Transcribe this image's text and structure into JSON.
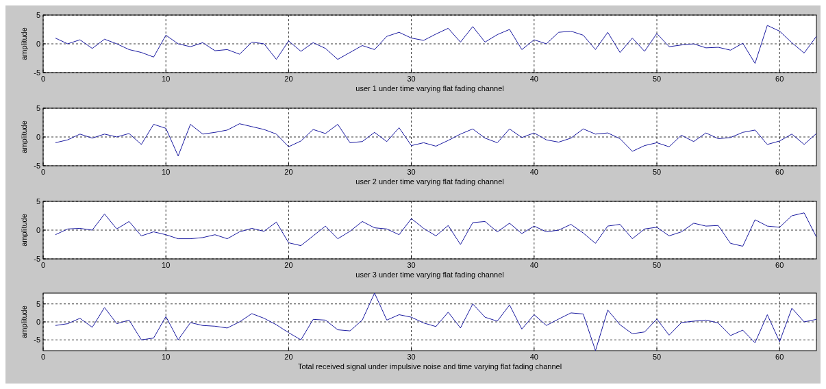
{
  "chart_data": [
    {
      "type": "line",
      "xlabel": "user 1 under time varying flat fading channel",
      "ylabel": "amplitude",
      "x": [
        1,
        2,
        3,
        4,
        5,
        6,
        7,
        8,
        9,
        10,
        11,
        12,
        13,
        14,
        15,
        16,
        17,
        18,
        19,
        20,
        21,
        22,
        23,
        24,
        25,
        26,
        27,
        28,
        29,
        30,
        31,
        32,
        33,
        34,
        35,
        36,
        37,
        38,
        39,
        40,
        41,
        42,
        43,
        44,
        45,
        46,
        47,
        48,
        49,
        50,
        51,
        52,
        53,
        54,
        55,
        56,
        57,
        58,
        59,
        60,
        61,
        62,
        63
      ],
      "xlim": [
        0,
        63
      ],
      "xticks": [
        0,
        10,
        20,
        30,
        40,
        50,
        60
      ],
      "ylim": [
        -5,
        5
      ],
      "yticks": [
        -5,
        0,
        5
      ],
      "grid": true,
      "series": [
        {
          "color": "#1a1aa0",
          "values": [
            1.0,
            0,
            0.7,
            -0.8,
            0.8,
            0,
            -1,
            -1.5,
            -2.3,
            1.5,
            0,
            -0.5,
            0.2,
            -1.2,
            -1,
            -1.8,
            0.3,
            0,
            -2.7,
            0.5,
            -1.3,
            0.2,
            -0.8,
            -2.7,
            -1.5,
            -0.3,
            -1,
            1.3,
            2,
            1,
            0.6,
            1.7,
            2.7,
            0.3,
            3,
            0.3,
            1.6,
            2.5,
            -1,
            0.7,
            0,
            2,
            2.2,
            1.5,
            -1,
            2,
            -1.5,
            1,
            -1.3,
            1.8,
            -0.5,
            -0.2,
            0,
            -0.7,
            -0.6,
            -1.1,
            0.1,
            -3.4,
            3.2,
            2.2,
            0.2,
            -1.6,
            1.3
          ]
        }
      ]
    },
    {
      "type": "line",
      "xlabel": "user 2 under time varying flat fading channel",
      "ylabel": "amplitude",
      "x": [
        1,
        2,
        3,
        4,
        5,
        6,
        7,
        8,
        9,
        10,
        11,
        12,
        13,
        14,
        15,
        16,
        17,
        18,
        19,
        20,
        21,
        22,
        23,
        24,
        25,
        26,
        27,
        28,
        29,
        30,
        31,
        32,
        33,
        34,
        35,
        36,
        37,
        38,
        39,
        40,
        41,
        42,
        43,
        44,
        45,
        46,
        47,
        48,
        49,
        50,
        51,
        52,
        53,
        54,
        55,
        56,
        57,
        58,
        59,
        60,
        61,
        62,
        63
      ],
      "xlim": [
        0,
        63
      ],
      "xticks": [
        0,
        10,
        20,
        30,
        40,
        50,
        60
      ],
      "ylim": [
        -5,
        5
      ],
      "yticks": [
        -5,
        0,
        5
      ],
      "grid": true,
      "series": [
        {
          "color": "#1a1aa0",
          "values": [
            -1,
            -0.5,
            0.5,
            -0.2,
            0.5,
            0,
            0.6,
            -1.3,
            2.2,
            1.5,
            -3.3,
            2.2,
            0.5,
            0.8,
            1.2,
            2.3,
            1.8,
            1.3,
            0.5,
            -1.7,
            -0.7,
            1.3,
            0.6,
            2.2,
            -1,
            -0.8,
            0.8,
            -0.8,
            1.6,
            -1.5,
            -1,
            -1.6,
            -0.6,
            0.5,
            1.4,
            -0.2,
            -1,
            1.4,
            -0.1,
            0.7,
            -0.5,
            -0.9,
            -0.2,
            1.4,
            0.5,
            0.7,
            -0.3,
            -2.5,
            -1.5,
            -1,
            -1.7,
            0.3,
            -0.8,
            0.7,
            -0.3,
            -0.1,
            0.8,
            1.2,
            -1.3,
            -0.7,
            0.5,
            -1.3,
            0.6
          ]
        }
      ]
    },
    {
      "type": "line",
      "xlabel": "user 3 under time varying flat fading channel",
      "ylabel": "amplitude",
      "x": [
        1,
        2,
        3,
        4,
        5,
        6,
        7,
        8,
        9,
        10,
        11,
        12,
        13,
        14,
        15,
        16,
        17,
        18,
        19,
        20,
        21,
        22,
        23,
        24,
        25,
        26,
        27,
        28,
        29,
        30,
        31,
        32,
        33,
        34,
        35,
        36,
        37,
        38,
        39,
        40,
        41,
        42,
        43,
        44,
        45,
        46,
        47,
        48,
        49,
        50,
        51,
        52,
        53,
        54,
        55,
        56,
        57,
        58,
        59,
        60,
        61,
        62,
        63
      ],
      "xlim": [
        0,
        63
      ],
      "xticks": [
        0,
        10,
        20,
        30,
        40,
        50,
        60
      ],
      "ylim": [
        -5,
        5
      ],
      "yticks": [
        -5,
        0,
        5
      ],
      "grid": true,
      "series": [
        {
          "color": "#1a1aa0",
          "values": [
            -0.8,
            0.2,
            0.3,
            0,
            2.8,
            0.2,
            1.5,
            -1,
            -0.3,
            -0.8,
            -1.5,
            -1.5,
            -1.3,
            -0.8,
            -1.5,
            -0.3,
            0.3,
            -0.2,
            1.4,
            -2.2,
            -2.7,
            -1,
            0.7,
            -1.5,
            -0.2,
            1.5,
            0.4,
            0.2,
            -0.8,
            2,
            0.3,
            -1,
            0.8,
            -2.5,
            1.3,
            1.5,
            -0.3,
            1.2,
            -0.6,
            0.7,
            -0.3,
            0,
            1,
            -0.5,
            -2.3,
            0.7,
            1,
            -1.5,
            0.2,
            0.5,
            -1,
            -0.3,
            1.2,
            0.7,
            0.8,
            -2.3,
            -2.8,
            1.8,
            0.7,
            0.5,
            2.5,
            3,
            -1.2
          ]
        }
      ]
    },
    {
      "type": "line",
      "xlabel": "Total received signal under impulsive noise and time varying flat fading channel",
      "ylabel": "amplitude",
      "x": [
        1,
        2,
        3,
        4,
        5,
        6,
        7,
        8,
        9,
        10,
        11,
        12,
        13,
        14,
        15,
        16,
        17,
        18,
        19,
        20,
        21,
        22,
        23,
        24,
        25,
        26,
        27,
        28,
        29,
        30,
        31,
        32,
        33,
        34,
        35,
        36,
        37,
        38,
        39,
        40,
        41,
        42,
        43,
        44,
        45,
        46,
        47,
        48,
        49,
        50,
        51,
        52,
        53,
        54,
        55,
        56,
        57,
        58,
        59,
        60,
        61,
        62,
        63
      ],
      "xlim": [
        0,
        63
      ],
      "xticks": [
        0,
        10,
        20,
        30,
        40,
        50,
        60
      ],
      "ylim": [
        -8,
        8
      ],
      "yticks": [
        -5,
        0,
        5
      ],
      "grid": true,
      "series": [
        {
          "color": "#1a1aa0",
          "values": [
            -1,
            -0.5,
            1,
            -1.5,
            4,
            -0.5,
            0.5,
            -5,
            -4.5,
            1.5,
            -5,
            -0.2,
            -1,
            -1.2,
            -1.7,
            0,
            2.3,
            1,
            -0.8,
            -3,
            -5,
            0.7,
            0.5,
            -2.2,
            -2.5,
            0.5,
            8,
            0.5,
            2,
            1.3,
            -0.3,
            -1.3,
            2.7,
            -1.7,
            5,
            1.3,
            0.2,
            4.7,
            -2,
            2,
            -1,
            0.8,
            2.5,
            2.2,
            -8,
            3.3,
            -0.8,
            -3.3,
            -2.8,
            0.8,
            -3.7,
            -0.2,
            0.2,
            0.5,
            -0.3,
            -3.8,
            -2.3,
            -5.8,
            2,
            -5.5,
            3.8,
            0,
            0.7
          ]
        }
      ]
    }
  ]
}
